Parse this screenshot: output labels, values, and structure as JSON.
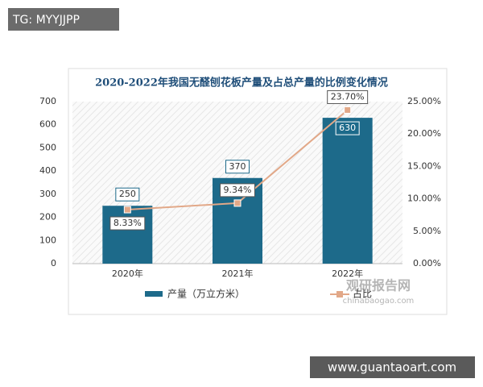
{
  "overlays": {
    "tag": "TG: MYYJJPP",
    "site": "www.guantaoart.com",
    "watermark": "观研报告网",
    "watermark_url": "chinabaogao.com"
  },
  "chart_data": {
    "type": "bar",
    "title": "2020-2022年我国无醛刨花板产量及占总产量的比例变化情况",
    "categories": [
      "2020年",
      "2021年",
      "2022年"
    ],
    "series": [
      {
        "name": "产量（万立方米）",
        "type": "bar",
        "color": "#1d6a8a",
        "values": [
          250,
          370,
          630
        ]
      },
      {
        "name": "占比",
        "type": "line",
        "axis": "y2",
        "color": "#e2a888",
        "values": [
          8.33,
          9.34,
          23.7
        ],
        "value_labels": [
          "8.33%",
          "9.34%",
          "23.70%"
        ]
      }
    ],
    "ylim": [
      0,
      700
    ],
    "yticks": [
      0,
      100,
      200,
      300,
      400,
      500,
      600,
      700
    ],
    "y2lim": [
      0,
      25
    ],
    "y2ticks": [
      {
        "value": 0,
        "label": "0.00%"
      },
      {
        "value": 5,
        "label": "5.00%"
      },
      {
        "value": 10,
        "label": "10.00%"
      },
      {
        "value": 15,
        "label": "15.00%"
      },
      {
        "value": 20,
        "label": "20.00%"
      },
      {
        "value": 25,
        "label": "25.00%"
      }
    ],
    "legend": "bottom"
  }
}
